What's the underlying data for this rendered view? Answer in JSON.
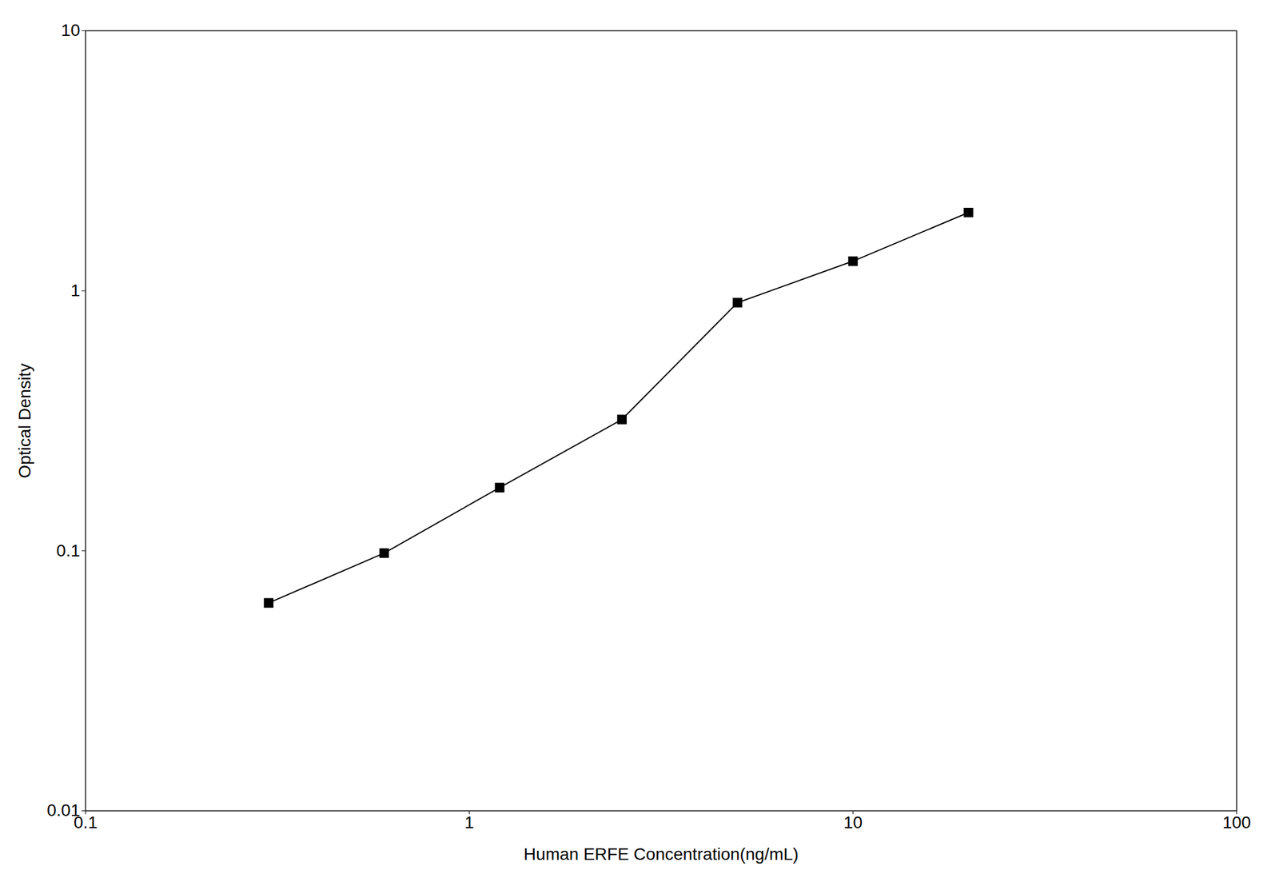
{
  "chart_data": {
    "type": "line",
    "x": [
      0.3,
      0.6,
      1.2,
      2.5,
      5.0,
      10.0,
      20.0
    ],
    "values": [
      0.063,
      0.098,
      0.175,
      0.32,
      0.9,
      1.3,
      2.0
    ],
    "xlabel": "Human ERFE Concentration(ng/mL)",
    "ylabel": "Optical Density",
    "xlim": [
      0.1,
      100
    ],
    "ylim": [
      0.01,
      10
    ],
    "xticks": [
      0.1,
      1,
      10,
      100
    ],
    "yticks": [
      0.01,
      0.1,
      1,
      10
    ],
    "log": true,
    "grid": false,
    "color": "#000000",
    "marker": "square"
  }
}
